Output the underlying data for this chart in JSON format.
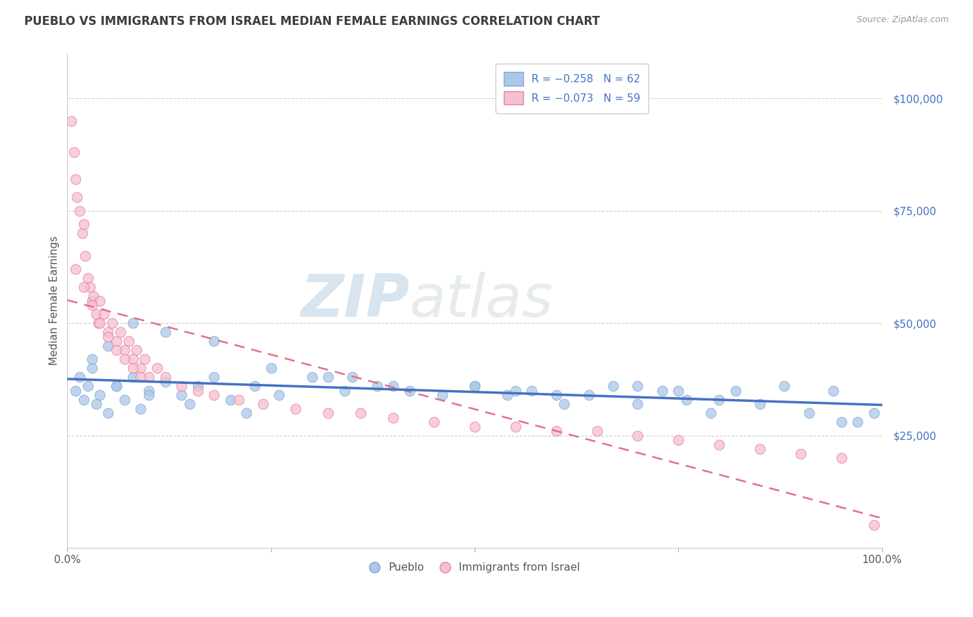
{
  "title": "PUEBLO VS IMMIGRANTS FROM ISRAEL MEDIAN FEMALE EARNINGS CORRELATION CHART",
  "source": "Source: ZipAtlas.com",
  "ylabel": "Median Female Earnings",
  "title_color": "#3d3d3d",
  "title_fontsize": 12,
  "watermark_zip": "ZIP",
  "watermark_atlas": "atlas",
  "legend_blue_label": "R = -0.258   N = 62",
  "legend_pink_label": "R = -0.073   N = 59",
  "pueblo_color": "#aec6e8",
  "pueblo_edge": "#7aadd4",
  "israel_color": "#f5c0d0",
  "israel_edge": "#e87fa0",
  "blue_line_color": "#4472c4",
  "pink_dashed_color": "#e07090",
  "ytick_color": "#4472c4",
  "pueblo_scatter_x": [
    1.0,
    1.5,
    2.0,
    2.5,
    3.0,
    3.5,
    4.0,
    5.0,
    6.0,
    7.0,
    8.0,
    9.0,
    10.0,
    12.0,
    14.0,
    16.0,
    18.0,
    20.0,
    23.0,
    26.0,
    30.0,
    34.0,
    38.0,
    42.0,
    46.0,
    50.0,
    54.0,
    57.0,
    61.0,
    64.0,
    67.0,
    70.0,
    73.0,
    76.0,
    79.0,
    82.0,
    85.0,
    88.0,
    91.0,
    94.0,
    97.0,
    99.0,
    3.0,
    5.0,
    8.0,
    12.0,
    18.0,
    25.0,
    32.0,
    40.0,
    50.0,
    60.0,
    70.0,
    80.0,
    6.0,
    10.0,
    15.0,
    22.0,
    35.0,
    55.0,
    75.0,
    95.0
  ],
  "pueblo_scatter_y": [
    35000,
    38000,
    33000,
    36000,
    40000,
    32000,
    34000,
    30000,
    36000,
    33000,
    38000,
    31000,
    35000,
    37000,
    34000,
    36000,
    38000,
    33000,
    36000,
    34000,
    38000,
    35000,
    36000,
    35000,
    34000,
    36000,
    34000,
    35000,
    32000,
    34000,
    36000,
    32000,
    35000,
    33000,
    30000,
    35000,
    32000,
    36000,
    30000,
    35000,
    28000,
    30000,
    42000,
    45000,
    50000,
    48000,
    46000,
    40000,
    38000,
    36000,
    36000,
    34000,
    36000,
    33000,
    36000,
    34000,
    32000,
    30000,
    38000,
    35000,
    35000,
    28000
  ],
  "israel_scatter_x": [
    0.5,
    0.8,
    1.0,
    1.2,
    1.5,
    1.8,
    2.0,
    2.2,
    2.5,
    2.8,
    3.0,
    3.2,
    3.5,
    3.8,
    4.0,
    4.5,
    5.0,
    5.5,
    6.0,
    6.5,
    7.0,
    7.5,
    8.0,
    8.5,
    9.0,
    9.5,
    10.0,
    11.0,
    12.0,
    14.0,
    16.0,
    18.0,
    21.0,
    24.0,
    28.0,
    32.0,
    36.0,
    40.0,
    45.0,
    50.0,
    55.0,
    60.0,
    65.0,
    70.0,
    75.0,
    80.0,
    85.0,
    90.0,
    95.0,
    99.0,
    1.0,
    2.0,
    3.0,
    4.0,
    5.0,
    6.0,
    7.0,
    8.0,
    9.0
  ],
  "israel_scatter_y": [
    95000,
    88000,
    82000,
    78000,
    75000,
    70000,
    72000,
    65000,
    60000,
    58000,
    55000,
    56000,
    52000,
    50000,
    55000,
    52000,
    48000,
    50000,
    46000,
    48000,
    44000,
    46000,
    42000,
    44000,
    40000,
    42000,
    38000,
    40000,
    38000,
    36000,
    35000,
    34000,
    33000,
    32000,
    31000,
    30000,
    30000,
    29000,
    28000,
    27000,
    27000,
    26000,
    26000,
    25000,
    24000,
    23000,
    22000,
    21000,
    20000,
    5000,
    62000,
    58000,
    54000,
    50000,
    47000,
    44000,
    42000,
    40000,
    38000
  ]
}
